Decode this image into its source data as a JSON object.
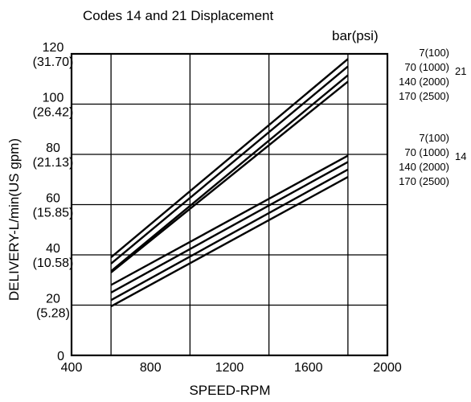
{
  "chart_data": {
    "type": "line",
    "title": "Codes 14 and 21 Displacement",
    "pressure_unit_label": "bar(psi)",
    "xlabel": "SPEED-RPM",
    "ylabel": "DELIVERY-L/min(US gpm)",
    "xlim": [
      400,
      2000
    ],
    "ylim": [
      0,
      120
    ],
    "grid": true,
    "x_ticks": [
      {
        "value": 400,
        "label": "400"
      },
      {
        "value": 800,
        "label": "800"
      },
      {
        "value": 1200,
        "label": "1200"
      },
      {
        "value": 1600,
        "label": "1600"
      },
      {
        "value": 2000,
        "label": "2000"
      }
    ],
    "y_ticks": [
      {
        "value": 0,
        "label": "0",
        "sublabel": ""
      },
      {
        "value": 20,
        "label": "20",
        "sublabel": "(5.28)"
      },
      {
        "value": 40,
        "label": "40",
        "sublabel": "(10.58)"
      },
      {
        "value": 60,
        "label": "60",
        "sublabel": "(15.85)"
      },
      {
        "value": 80,
        "label": "80",
        "sublabel": "(21.13)"
      },
      {
        "value": 100,
        "label": "100",
        "sublabel": "(26.42)"
      },
      {
        "value": 120,
        "label": "120",
        "sublabel": "(31.70)"
      }
    ],
    "x_gridlines": [
      600,
      1000,
      1400,
      1800
    ],
    "groups": [
      {
        "code": "21",
        "series": [
          {
            "name": "7(100)",
            "x": [
              600,
              1800
            ],
            "y": [
              39.0,
              118.0
            ]
          },
          {
            "name": "70 (1000)",
            "x": [
              600,
              1800
            ],
            "y": [
              36.5,
              115.0
            ]
          },
          {
            "name": "140 (2000)",
            "x": [
              600,
              1800
            ],
            "y": [
              33.5,
              111.5
            ]
          },
          {
            "name": "170 (2500)",
            "x": [
              600,
              1800
            ],
            "y": [
              33.0,
              109.0
            ]
          }
        ]
      },
      {
        "code": "14",
        "series": [
          {
            "name": "7(100)",
            "x": [
              600,
              1800
            ],
            "y": [
              28.0,
              79.5
            ]
          },
          {
            "name": "70 (1000)",
            "x": [
              600,
              1800
            ],
            "y": [
              25.0,
              77.0
            ]
          },
          {
            "name": "140 (2000)",
            "x": [
              600,
              1800
            ],
            "y": [
              22.0,
              74.0
            ]
          },
          {
            "name": "170 (2500)",
            "x": [
              600,
              1800
            ],
            "y": [
              19.5,
              71.0
            ]
          }
        ]
      }
    ]
  }
}
